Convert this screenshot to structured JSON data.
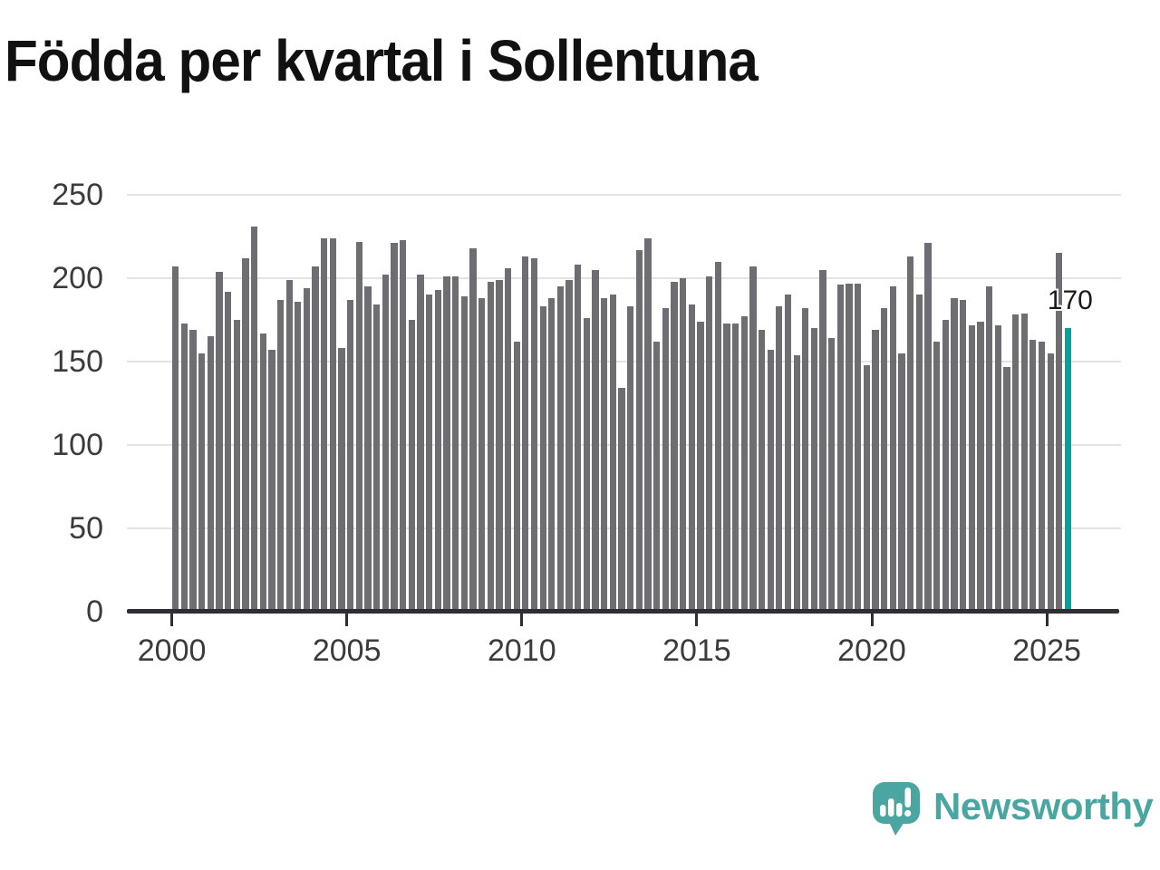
{
  "title": "Födda per kvartal i Sollentuna",
  "annotation": {
    "value_label": "170"
  },
  "branding": {
    "name": "Newsworthy"
  },
  "colors": {
    "bar": "#6d6d72",
    "highlight": "#00a29b",
    "axis": "#2e2e34",
    "grid": "#e3e3e3",
    "logo": "#4ba5a1",
    "tick_text": "#3b3b3b",
    "title_text": "#111111"
  },
  "chart_data": {
    "type": "bar",
    "title": "Födda per kvartal i Sollentuna",
    "xlabel": "",
    "ylabel": "",
    "ylim": [
      0,
      250
    ],
    "yticks": [
      0,
      50,
      100,
      150,
      200,
      250
    ],
    "xticks": [
      "2000",
      "2005",
      "2010",
      "2015",
      "2020",
      "2025"
    ],
    "grid": "horizontal",
    "legend": "none",
    "highlight_index": 102,
    "highlight_value": 170,
    "categories": [
      "2000 Q1",
      "2000 Q2",
      "2000 Q3",
      "2000 Q4",
      "2001 Q1",
      "2001 Q2",
      "2001 Q3",
      "2001 Q4",
      "2002 Q1",
      "2002 Q2",
      "2002 Q3",
      "2002 Q4",
      "2003 Q1",
      "2003 Q2",
      "2003 Q3",
      "2003 Q4",
      "2004 Q1",
      "2004 Q2",
      "2004 Q3",
      "2004 Q4",
      "2005 Q1",
      "2005 Q2",
      "2005 Q3",
      "2005 Q4",
      "2006 Q1",
      "2006 Q2",
      "2006 Q3",
      "2006 Q4",
      "2007 Q1",
      "2007 Q2",
      "2007 Q3",
      "2007 Q4",
      "2008 Q1",
      "2008 Q2",
      "2008 Q3",
      "2008 Q4",
      "2009 Q1",
      "2009 Q2",
      "2009 Q3",
      "2009 Q4",
      "2010 Q1",
      "2010 Q2",
      "2010 Q3",
      "2010 Q4",
      "2011 Q1",
      "2011 Q2",
      "2011 Q3",
      "2011 Q4",
      "2012 Q1",
      "2012 Q2",
      "2012 Q3",
      "2012 Q4",
      "2013 Q1",
      "2013 Q2",
      "2013 Q3",
      "2013 Q4",
      "2014 Q1",
      "2014 Q2",
      "2014 Q3",
      "2014 Q4",
      "2015 Q1",
      "2015 Q2",
      "2015 Q3",
      "2015 Q4",
      "2016 Q1",
      "2016 Q2",
      "2016 Q3",
      "2016 Q4",
      "2017 Q1",
      "2017 Q2",
      "2017 Q3",
      "2017 Q4",
      "2018 Q1",
      "2018 Q2",
      "2018 Q3",
      "2018 Q4",
      "2019 Q1",
      "2019 Q2",
      "2019 Q3",
      "2019 Q4",
      "2020 Q1",
      "2020 Q2",
      "2020 Q3",
      "2020 Q4",
      "2021 Q1",
      "2021 Q2",
      "2021 Q3",
      "2021 Q4",
      "2022 Q1",
      "2022 Q2",
      "2022 Q3",
      "2022 Q4",
      "2023 Q1",
      "2023 Q2",
      "2023 Q3",
      "2023 Q4",
      "2024 Q1",
      "2024 Q2",
      "2024 Q3",
      "2024 Q4",
      "2025 Q1",
      "2025 Q2",
      "2025 Q3"
    ],
    "values": [
      207,
      173,
      169,
      155,
      165,
      204,
      192,
      175,
      212,
      231,
      167,
      157,
      187,
      199,
      186,
      194,
      207,
      224,
      224,
      158,
      187,
      222,
      195,
      184,
      202,
      221,
      223,
      175,
      202,
      190,
      193,
      201,
      201,
      189,
      218,
      188,
      198,
      199,
      206,
      162,
      213,
      212,
      183,
      188,
      195,
      199,
      208,
      176,
      205,
      188,
      190,
      134,
      183,
      217,
      224,
      162,
      182,
      198,
      200,
      184,
      174,
      201,
      210,
      173,
      173,
      177,
      207,
      169,
      157,
      183,
      190,
      154,
      182,
      170,
      205,
      164,
      196,
      197,
      197,
      148,
      169,
      182,
      195,
      155,
      213,
      190,
      221,
      162,
      175,
      188,
      187,
      172,
      174,
      195,
      172,
      147,
      178,
      179,
      163,
      162,
      155,
      215,
      170
    ]
  }
}
